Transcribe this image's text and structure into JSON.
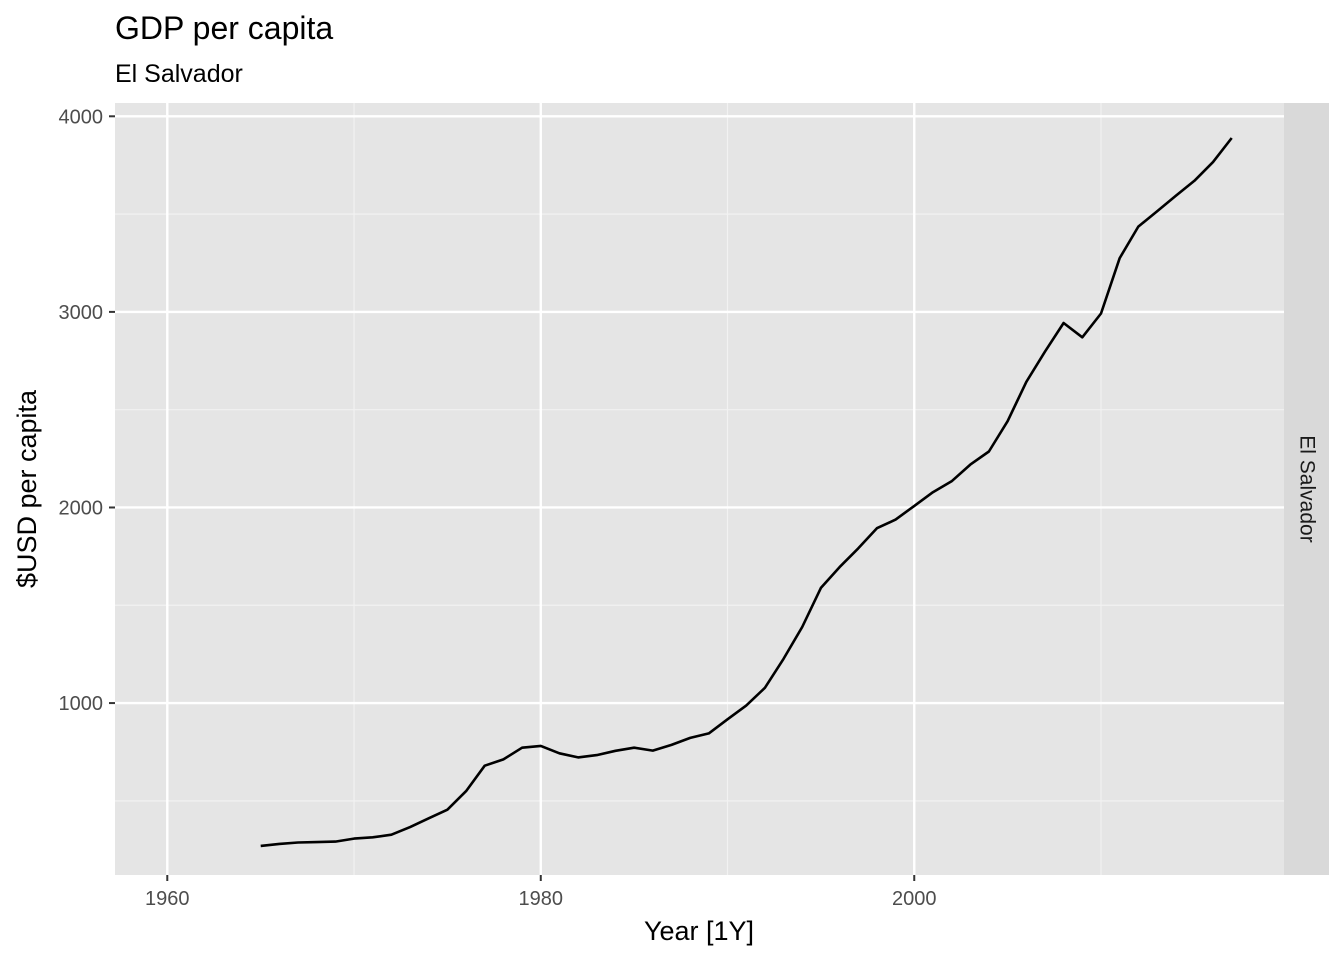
{
  "chart_data": {
    "type": "line",
    "title": "GDP per capita",
    "subtitle": "El Salvador",
    "xlabel": "Year [1Y]",
    "ylabel": "$USD per capita",
    "facet_label": "El Salvador",
    "xlim": [
      1957.2,
      2019.8
    ],
    "ylim": [
      121,
      4068
    ],
    "x_ticks": [
      1960,
      1980,
      2000
    ],
    "x_tick_labels": [
      "1960",
      "1980",
      "2000"
    ],
    "y_ticks": [
      1000,
      2000,
      3000,
      4000
    ],
    "y_tick_labels": [
      "1000",
      "2000",
      "3000",
      "4000"
    ],
    "grid": true,
    "line_color": "#000000",
    "panel_background": "#e5e5e5",
    "strip_background": "#d9d9d9",
    "series": [
      {
        "x": [
          1965,
          1966,
          1967,
          1968,
          1969,
          1970,
          1971,
          1972,
          1973,
          1974,
          1975,
          1976,
          1977,
          1978,
          1979,
          1980,
          1981,
          1982,
          1983,
          1984,
          1985,
          1986,
          1987,
          1988,
          1989,
          1990,
          1991,
          1992,
          1993,
          1994,
          1995,
          1996,
          1997,
          1998,
          1999,
          2000,
          2001,
          2002,
          2003,
          2004,
          2005,
          2006,
          2007,
          2008,
          2009,
          2010,
          2011,
          2012,
          2013,
          2014,
          2015,
          2016,
          2017
        ],
        "y": [
          270,
          280,
          287,
          289,
          292,
          307,
          314,
          327,
          366,
          411,
          455,
          550,
          680,
          712,
          772,
          781,
          743,
          722,
          734,
          756,
          772,
          757,
          786,
          822,
          845,
          917,
          987,
          1078,
          1226,
          1389,
          1589,
          1695,
          1791,
          1894,
          1938,
          2008,
          2078,
          2134,
          2219,
          2286,
          2441,
          2642,
          2797,
          2943,
          2870,
          2992,
          3275,
          3436,
          3514,
          3593,
          3670,
          3766,
          3889
        ]
      }
    ]
  }
}
